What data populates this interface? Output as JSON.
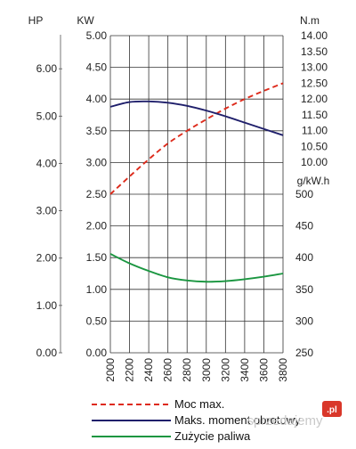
{
  "chart_data": {
    "type": "line",
    "x": [
      2000,
      2200,
      2400,
      2600,
      2800,
      3000,
      3200,
      3400,
      3600,
      3800
    ],
    "xlim": [
      2000,
      3800
    ],
    "axes": {
      "hp": {
        "label": "HP",
        "ticks": [
          "0.00",
          "1.00",
          "2.00",
          "3.00",
          "4.00",
          "5.00",
          "6.00"
        ],
        "range": [
          0,
          6.7
        ]
      },
      "kw": {
        "label": "KW",
        "ticks": [
          "0.00",
          "0.50",
          "1.00",
          "1.50",
          "2.00",
          "2.50",
          "3.00",
          "3.50",
          "4.00",
          "4.50",
          "5.00"
        ],
        "range": [
          0,
          5
        ]
      },
      "torque": {
        "label": "N.m",
        "ticks": [
          "10.00",
          "10.50",
          "11.00",
          "11.50",
          "12.00",
          "12.50",
          "13.00",
          "13.50",
          "14.00"
        ],
        "range": [
          10,
          14
        ]
      },
      "consumption": {
        "label": "g/kW.h",
        "ticks": [
          "250",
          "300",
          "350",
          "400",
          "450",
          "500"
        ],
        "range": [
          250,
          500
        ]
      }
    },
    "series": [
      {
        "name": "Moc max.",
        "axis": "kw",
        "color": "#dd2a1b",
        "dash": true,
        "values": [
          2.5,
          2.78,
          3.05,
          3.3,
          3.5,
          3.68,
          3.85,
          4.0,
          4.13,
          4.25
        ]
      },
      {
        "name": "Maks. moment obrotowy",
        "axis": "torque",
        "color": "#1f1f6b",
        "dash": false,
        "values": [
          11.75,
          11.9,
          11.92,
          11.88,
          11.78,
          11.63,
          11.45,
          11.25,
          11.05,
          10.85
        ]
      },
      {
        "name": "Zużycie paliwa",
        "axis": "consumption",
        "color": "#1a9640",
        "dash": false,
        "values": [
          406,
          391,
          379,
          369,
          364,
          362,
          363,
          366,
          370,
          375
        ]
      }
    ],
    "grid": true,
    "legend_position": "bottom"
  },
  "watermark": {
    "text": "sprzedajemy",
    "badge": ".pl"
  }
}
